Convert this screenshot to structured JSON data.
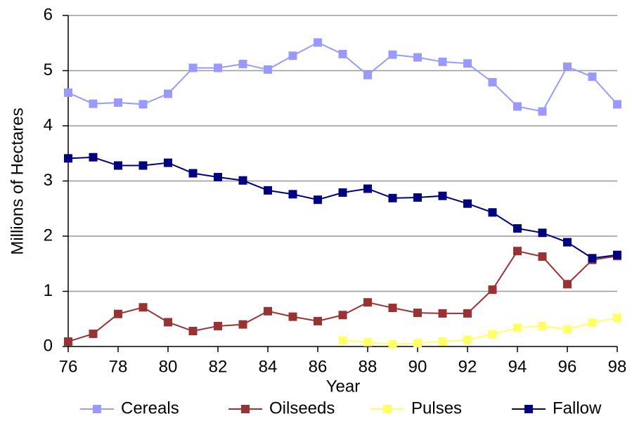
{
  "chart_data": {
    "type": "line",
    "x_label": "Year",
    "y_label": "Millions of Hectares",
    "x": [
      76,
      77,
      78,
      79,
      80,
      81,
      82,
      83,
      84,
      85,
      86,
      87,
      88,
      89,
      90,
      91,
      92,
      93,
      94,
      95,
      96,
      97,
      98
    ],
    "series": [
      {
        "name": "Cereals",
        "color": "#9999ff",
        "values": [
          4.6,
          4.4,
          4.42,
          4.39,
          4.58,
          5.05,
          5.05,
          5.12,
          5.02,
          5.27,
          5.51,
          5.3,
          4.92,
          5.29,
          5.24,
          5.16,
          5.13,
          4.79,
          4.35,
          4.26,
          5.07,
          4.89,
          4.39
        ]
      },
      {
        "name": "Oilseeds",
        "color": "#993333",
        "values": [
          0.09,
          0.23,
          0.59,
          0.71,
          0.44,
          0.28,
          0.37,
          0.4,
          0.64,
          0.54,
          0.46,
          0.57,
          0.8,
          0.7,
          0.61,
          0.6,
          0.6,
          1.03,
          1.73,
          1.63,
          1.13,
          1.57,
          1.64
        ]
      },
      {
        "name": "Pulses",
        "color": "#ffff66",
        "values": [
          null,
          null,
          null,
          null,
          null,
          null,
          null,
          null,
          null,
          null,
          null,
          0.11,
          0.08,
          0.04,
          0.06,
          0.09,
          0.12,
          0.22,
          0.34,
          0.37,
          0.31,
          0.43,
          0.52
        ]
      },
      {
        "name": "Fallow",
        "color": "#000080",
        "values": [
          3.41,
          3.43,
          3.28,
          3.28,
          3.33,
          3.14,
          3.07,
          3.01,
          2.83,
          2.76,
          2.66,
          2.79,
          2.86,
          2.69,
          2.7,
          2.73,
          2.59,
          2.43,
          2.14,
          2.06,
          1.89,
          1.6,
          1.66
        ]
      }
    ],
    "xlim": [
      76,
      98
    ],
    "xticks": [
      76,
      78,
      80,
      82,
      84,
      86,
      88,
      90,
      92,
      94,
      96,
      98
    ],
    "ylim": [
      0,
      6
    ],
    "yticks": [
      0,
      1,
      2,
      3,
      4,
      5,
      6
    ],
    "grid": true,
    "legend": "bottom"
  }
}
